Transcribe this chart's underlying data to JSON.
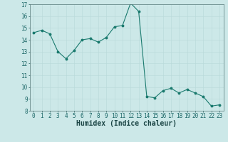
{
  "x": [
    0,
    1,
    2,
    3,
    4,
    5,
    6,
    7,
    8,
    9,
    10,
    11,
    12,
    13,
    14,
    15,
    16,
    17,
    18,
    19,
    20,
    21,
    22,
    23
  ],
  "y": [
    14.6,
    14.8,
    14.5,
    13.0,
    12.4,
    13.1,
    14.0,
    14.1,
    13.8,
    14.2,
    15.1,
    15.2,
    17.1,
    16.4,
    9.2,
    9.1,
    9.7,
    9.9,
    9.5,
    9.8,
    9.5,
    9.2,
    8.4,
    8.5
  ],
  "line_color": "#1a7a6e",
  "bg_color": "#cce8e8",
  "grid_color": "#b8d8d8",
  "xlabel": "Humidex (Indice chaleur)",
  "ylim": [
    8,
    17
  ],
  "xlim_min": -0.5,
  "xlim_max": 23.5,
  "yticks": [
    8,
    9,
    10,
    11,
    12,
    13,
    14,
    15,
    16,
    17
  ],
  "xticks": [
    0,
    1,
    2,
    3,
    4,
    5,
    6,
    7,
    8,
    9,
    10,
    11,
    12,
    13,
    14,
    15,
    16,
    17,
    18,
    19,
    20,
    21,
    22,
    23
  ],
  "tick_fontsize": 5.5,
  "xlabel_fontsize": 7.0,
  "xlabel_bold": true
}
